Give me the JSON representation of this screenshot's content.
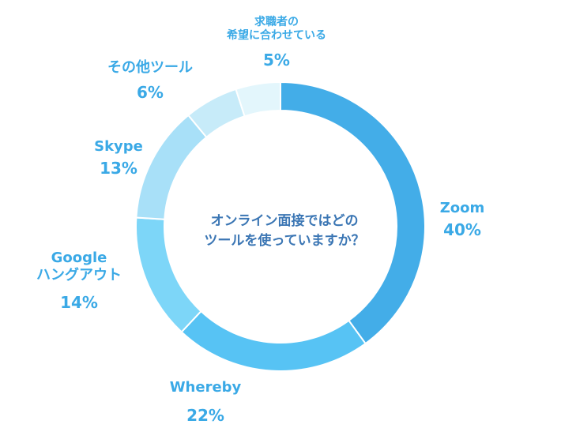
{
  "chart_data": {
    "type": "pie",
    "title": "オンライン面接ではどのツールを使っていますか？",
    "title_lines": [
      "オンライン面接ではどの",
      "ツールを使っていますか？"
    ],
    "donut": true,
    "slices": [
      {
        "label": "Zoom",
        "lines": [
          "Zoom"
        ],
        "value": 40,
        "value_label": "40%",
        "color": "#43ade8"
      },
      {
        "label": "Whereby",
        "lines": [
          "Whereby"
        ],
        "value": 22,
        "value_label": "22%",
        "color": "#57c3f4"
      },
      {
        "label": "Google ハングアウト",
        "lines": [
          "Google",
          "ハングアウト"
        ],
        "value": 14,
        "value_label": "14%",
        "color": "#7dd6f8"
      },
      {
        "label": "Skype",
        "lines": [
          "Skype"
        ],
        "value": 13,
        "value_label": "13%",
        "color": "#a8e0f8"
      },
      {
        "label": "その他ツール",
        "lines": [
          "その他ツール"
        ],
        "value": 6,
        "value_label": "6%",
        "color": "#c7ebf9"
      },
      {
        "label": "求職者の希望に合わせている",
        "lines": [
          "求職者の",
          "希望に合わせている"
        ],
        "value": 5,
        "value_label": "5%",
        "color": "#e3f6fc"
      }
    ]
  }
}
